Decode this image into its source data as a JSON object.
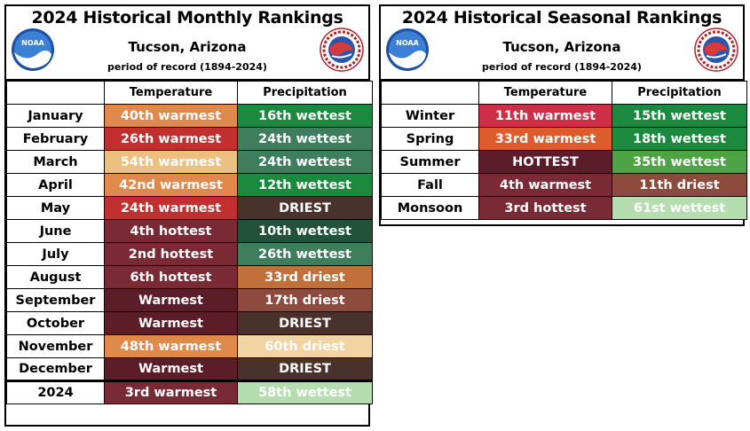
{
  "monthly": {
    "title": "2024 Historical Monthly Rankings",
    "location": "Tucson, Arizona",
    "period": "period of record (1894-2024)",
    "headers": [
      "Temperature",
      "Precipitation"
    ],
    "rows": [
      {
        "label": "January",
        "temp": "40th warmest",
        "temp_color": "#df8a4c",
        "precip": "16th wettest",
        "precip_color": "#1b8a3e"
      },
      {
        "label": "February",
        "temp": "26th warmest",
        "temp_color": "#c1302e",
        "precip": "24th wettest",
        "precip_color": "#3f7e5c"
      },
      {
        "label": "March",
        "temp": "54th warmest",
        "temp_color": "#ecc081",
        "precip": "24th wettest",
        "precip_color": "#3f7e5c"
      },
      {
        "label": "April",
        "temp": "42nd warmest",
        "temp_color": "#df8a4c",
        "precip": "12th wettest",
        "precip_color": "#1b8a3e"
      },
      {
        "label": "May",
        "temp": "24th warmest",
        "temp_color": "#c1302e",
        "precip": "DRIEST",
        "precip_color": "#4a322c"
      },
      {
        "label": "June",
        "temp": "4th hottest",
        "temp_color": "#7a2a35",
        "precip": "10th wettest",
        "precip_color": "#22523a"
      },
      {
        "label": "July",
        "temp": "2nd hottest",
        "temp_color": "#7a2a35",
        "precip": "26th wettest",
        "precip_color": "#3f7e5c"
      },
      {
        "label": "August",
        "temp": "6th hottest",
        "temp_color": "#7a2a35",
        "precip": "33rd driest",
        "precip_color": "#c1703a"
      },
      {
        "label": "September",
        "temp": "Warmest",
        "temp_color": "#5b1d28",
        "precip": "17th driest",
        "precip_color": "#8c4b3d"
      },
      {
        "label": "October",
        "temp": "Warmest",
        "temp_color": "#5b1d28",
        "precip": "DRIEST",
        "precip_color": "#4a322c"
      },
      {
        "label": "November",
        "temp": "48th warmest",
        "temp_color": "#df8a4c",
        "precip": "60th driest",
        "precip_color": "#f1d4a2"
      },
      {
        "label": "December",
        "temp": "Warmest",
        "temp_color": "#5b1d28",
        "precip": "DRIEST",
        "precip_color": "#4a322c"
      }
    ],
    "total": {
      "label": "2024",
      "temp": "3rd warmest",
      "temp_color": "#7a2a35",
      "precip": "58th wettest",
      "precip_color": "#b6ddb0"
    }
  },
  "seasonal": {
    "title": "2024 Historical Seasonal Rankings",
    "location": "Tucson, Arizona",
    "period": "period of record (1894-2024)",
    "headers": [
      "Temperature",
      "Precipitation"
    ],
    "rows": [
      {
        "label": "Winter",
        "temp": "11th warmest",
        "temp_color": "#cc2f46",
        "precip": "15th wettest",
        "precip_color": "#1b8a3e"
      },
      {
        "label": "Spring",
        "temp": "33rd warmest",
        "temp_color": "#dd5b2c",
        "precip": "18th wettest",
        "precip_color": "#1b8a3e"
      },
      {
        "label": "Summer",
        "temp": "HOTTEST",
        "temp_color": "#5b1d28",
        "precip": "35th wettest",
        "precip_color": "#4ea346"
      },
      {
        "label": "Fall",
        "temp": "4th warmest",
        "temp_color": "#7a2a35",
        "precip": "11th driest",
        "precip_color": "#8c4b3d"
      },
      {
        "label": "Monsoon",
        "temp": "3rd hottest",
        "temp_color": "#7a2a35",
        "precip": "61st wettest",
        "precip_color": "#b6ddb0"
      }
    ]
  },
  "logos": {
    "noaa_text": "NOAA",
    "nws_text": "NATIONAL WEATHER SERVICE"
  }
}
